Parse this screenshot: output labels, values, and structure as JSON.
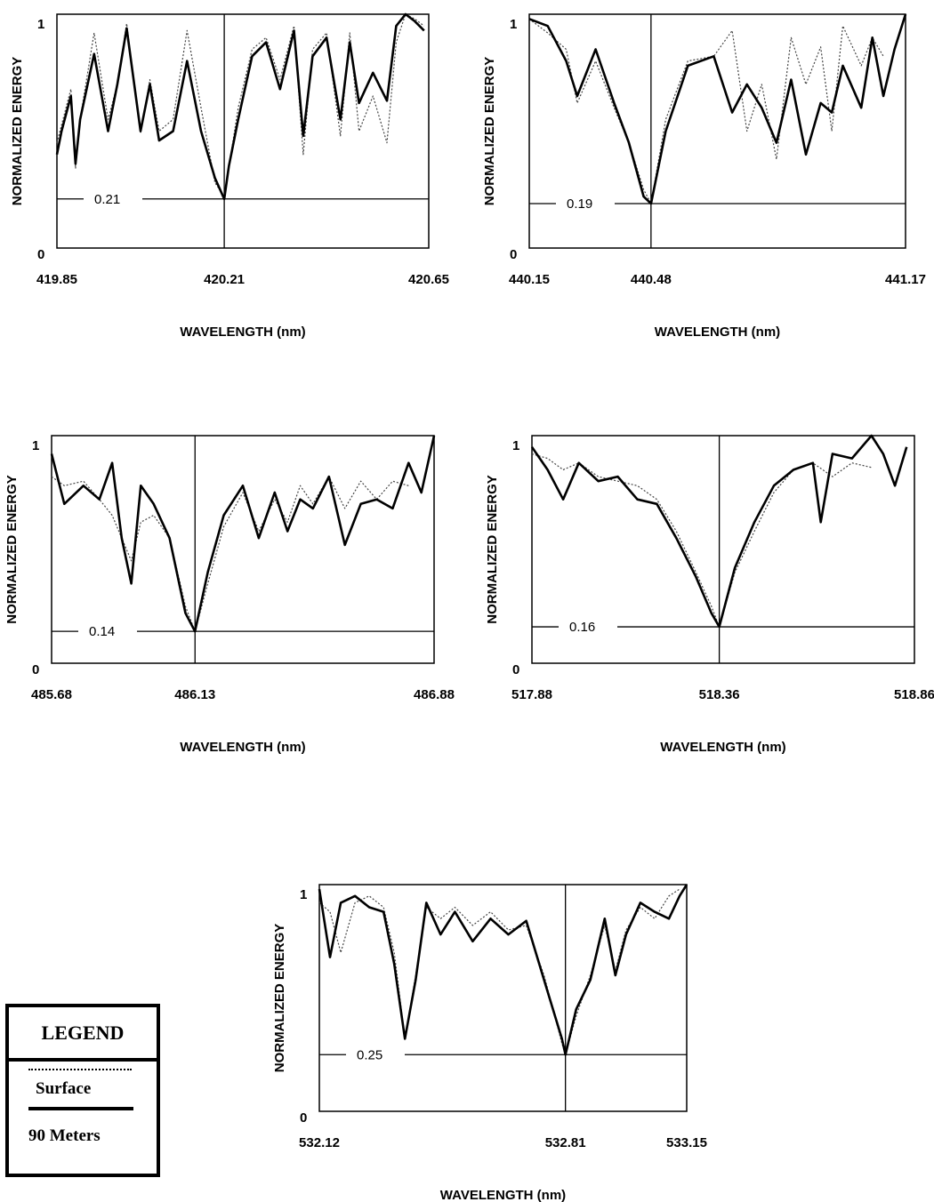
{
  "chart_data": [
    {
      "type": "line",
      "ylabel": "NORMALIZED ENERGY",
      "xlabel": "WAVELENGTH (nm)",
      "xlim": [
        419.85,
        420.65
      ],
      "ylim": [
        0,
        1
      ],
      "xticks": [
        "419.85",
        "420.21",
        "420.65"
      ],
      "yticks": [
        "0",
        "1"
      ],
      "line_center": 420.21,
      "min_value": 0.21,
      "min_label": "0.21",
      "series": [
        {
          "name": "Surface",
          "style": "dotted",
          "x": [
            419.85,
            419.88,
            419.89,
            419.9,
            419.93,
            419.96,
            419.98,
            420.0,
            420.03,
            420.05,
            420.07,
            420.1,
            420.13,
            420.16,
            420.19,
            420.21,
            420.24,
            420.27,
            420.3,
            420.33,
            420.36,
            420.38,
            420.4,
            420.43,
            420.46,
            420.48,
            420.5,
            420.53,
            420.56,
            420.58,
            420.6,
            420.62,
            420.64
          ],
          "y": [
            0.45,
            0.68,
            0.34,
            0.55,
            0.92,
            0.55,
            0.7,
            0.96,
            0.49,
            0.72,
            0.5,
            0.55,
            0.93,
            0.6,
            0.28,
            0.22,
            0.6,
            0.85,
            0.9,
            0.72,
            0.95,
            0.4,
            0.85,
            0.92,
            0.48,
            0.92,
            0.5,
            0.65,
            0.45,
            0.88,
            1.0,
            0.98,
            0.95
          ]
        },
        {
          "name": "90 Meters",
          "style": "solid",
          "x": [
            419.85,
            419.86,
            419.88,
            419.89,
            419.9,
            419.93,
            419.96,
            419.98,
            420.0,
            420.03,
            420.05,
            420.07,
            420.1,
            420.13,
            420.16,
            420.19,
            420.21,
            420.22,
            420.24,
            420.27,
            420.3,
            420.33,
            420.36,
            420.38,
            420.4,
            420.43,
            420.46,
            420.48,
            420.5,
            420.53,
            420.56,
            420.58,
            420.6,
            420.62,
            420.64
          ],
          "y": [
            0.4,
            0.5,
            0.65,
            0.36,
            0.55,
            0.83,
            0.5,
            0.7,
            0.94,
            0.5,
            0.7,
            0.46,
            0.5,
            0.8,
            0.5,
            0.3,
            0.21,
            0.35,
            0.55,
            0.82,
            0.88,
            0.68,
            0.93,
            0.48,
            0.82,
            0.9,
            0.55,
            0.88,
            0.62,
            0.75,
            0.63,
            0.95,
            1.0,
            0.97,
            0.93
          ]
        }
      ]
    },
    {
      "type": "line",
      "ylabel": "NORMALIZED ENERGY",
      "xlabel": "WAVELENGTH (nm)",
      "xlim": [
        440.15,
        441.17
      ],
      "ylim": [
        0,
        1
      ],
      "xticks": [
        "440.15",
        "440.48",
        "441.17"
      ],
      "yticks": [
        "0",
        "1"
      ],
      "line_center": 440.48,
      "min_value": 0.19,
      "min_label": "0.19",
      "series": [
        {
          "name": "Surface",
          "style": "dotted",
          "x": [
            440.15,
            440.2,
            440.25,
            440.28,
            440.33,
            440.38,
            440.42,
            440.46,
            440.48,
            440.52,
            440.58,
            440.65,
            440.7,
            440.74,
            440.78,
            440.82,
            440.86,
            440.9,
            440.94,
            440.97,
            441.0,
            441.05,
            441.08,
            441.11
          ],
          "y": [
            0.98,
            0.92,
            0.85,
            0.62,
            0.8,
            0.6,
            0.45,
            0.25,
            0.19,
            0.55,
            0.8,
            0.82,
            0.93,
            0.5,
            0.7,
            0.38,
            0.9,
            0.7,
            0.86,
            0.5,
            0.95,
            0.78,
            0.9,
            0.82
          ]
        },
        {
          "name": "90 Meters",
          "style": "solid",
          "x": [
            440.15,
            440.2,
            440.25,
            440.28,
            440.33,
            440.38,
            440.42,
            440.46,
            440.48,
            440.52,
            440.58,
            440.65,
            440.7,
            440.74,
            440.78,
            440.82,
            440.86,
            440.9,
            440.94,
            440.97,
            441.0,
            441.05,
            441.08,
            441.11,
            441.14,
            441.17
          ],
          "y": [
            0.98,
            0.95,
            0.8,
            0.65,
            0.85,
            0.62,
            0.45,
            0.22,
            0.19,
            0.5,
            0.78,
            0.82,
            0.58,
            0.7,
            0.6,
            0.45,
            0.72,
            0.4,
            0.62,
            0.58,
            0.78,
            0.6,
            0.9,
            0.65,
            0.85,
            1.0
          ]
        }
      ]
    },
    {
      "type": "line",
      "ylabel": "NORMALIZED ENERGY",
      "xlabel": "WAVELENGTH (nm)",
      "xlim": [
        485.68,
        486.88
      ],
      "ylim": [
        0,
        1
      ],
      "xticks": [
        "485.68",
        "486.13",
        "486.88"
      ],
      "yticks": [
        "0",
        "1"
      ],
      "line_center": 486.13,
      "min_value": 0.14,
      "min_label": "0.14",
      "series": [
        {
          "name": "Surface",
          "style": "dotted",
          "x": [
            485.68,
            485.72,
            485.78,
            485.83,
            485.87,
            485.9,
            485.93,
            485.96,
            486.0,
            486.05,
            486.1,
            486.13,
            486.17,
            486.22,
            486.28,
            486.33,
            486.38,
            486.42,
            486.46,
            486.5,
            486.55,
            486.6,
            486.65,
            486.7,
            486.75,
            486.8
          ],
          "y": [
            0.82,
            0.78,
            0.8,
            0.72,
            0.65,
            0.55,
            0.45,
            0.62,
            0.65,
            0.55,
            0.25,
            0.14,
            0.35,
            0.6,
            0.75,
            0.58,
            0.72,
            0.62,
            0.78,
            0.7,
            0.82,
            0.68,
            0.8,
            0.72,
            0.8,
            0.78
          ]
        },
        {
          "name": "90 Meters",
          "style": "solid",
          "x": [
            485.68,
            485.72,
            485.78,
            485.83,
            485.87,
            485.9,
            485.93,
            485.96,
            486.0,
            486.05,
            486.1,
            486.13,
            486.17,
            486.22,
            486.28,
            486.33,
            486.38,
            486.42,
            486.46,
            486.5,
            486.55,
            486.6,
            486.65,
            486.7,
            486.75,
            486.8,
            486.84,
            486.88
          ],
          "y": [
            0.92,
            0.7,
            0.78,
            0.72,
            0.88,
            0.55,
            0.35,
            0.78,
            0.7,
            0.55,
            0.22,
            0.14,
            0.4,
            0.65,
            0.78,
            0.55,
            0.75,
            0.58,
            0.72,
            0.68,
            0.82,
            0.52,
            0.7,
            0.72,
            0.68,
            0.88,
            0.75,
            1.0
          ]
        }
      ]
    },
    {
      "type": "line",
      "ylabel": "NORMALIZED ENERGY",
      "xlabel": "WAVELENGTH (nm)",
      "xlim": [
        517.88,
        518.86
      ],
      "ylim": [
        0,
        1
      ],
      "xticks": [
        "517.88",
        "518.36",
        "518.86"
      ],
      "yticks": [
        "0",
        "1"
      ],
      "line_center": 518.36,
      "min_value": 0.16,
      "min_label": "0.16",
      "series": [
        {
          "name": "Surface",
          "style": "dotted",
          "x": [
            517.88,
            517.92,
            517.96,
            518.0,
            518.05,
            518.1,
            518.15,
            518.2,
            518.25,
            518.3,
            518.34,
            518.36,
            518.4,
            518.45,
            518.5,
            518.55,
            518.6,
            518.65,
            518.7,
            518.75
          ],
          "y": [
            0.92,
            0.9,
            0.85,
            0.88,
            0.82,
            0.8,
            0.78,
            0.72,
            0.58,
            0.4,
            0.25,
            0.16,
            0.4,
            0.58,
            0.75,
            0.85,
            0.88,
            0.82,
            0.88,
            0.86
          ]
        },
        {
          "name": "90 Meters",
          "style": "solid",
          "x": [
            517.88,
            517.92,
            517.96,
            518.0,
            518.05,
            518.1,
            518.15,
            518.2,
            518.25,
            518.3,
            518.34,
            518.36,
            518.4,
            518.45,
            518.5,
            518.55,
            518.6,
            518.62,
            518.65,
            518.7,
            518.75,
            518.78,
            518.81,
            518.84
          ],
          "y": [
            0.95,
            0.85,
            0.72,
            0.88,
            0.8,
            0.82,
            0.72,
            0.7,
            0.55,
            0.38,
            0.22,
            0.16,
            0.42,
            0.62,
            0.78,
            0.85,
            0.88,
            0.62,
            0.92,
            0.9,
            1.0,
            0.92,
            0.78,
            0.95
          ]
        }
      ]
    },
    {
      "type": "line",
      "ylabel": "NORMALIZED ENERGY",
      "xlabel": "WAVELENGTH (nm)",
      "xlim": [
        532.12,
        533.15
      ],
      "ylim": [
        0,
        1
      ],
      "xticks": [
        "532.12",
        "532.81",
        "533.15"
      ],
      "yticks": [
        "0",
        "1"
      ],
      "line_center": 532.81,
      "min_value": 0.25,
      "min_label": "0.25",
      "series": [
        {
          "name": "Surface",
          "style": "dotted",
          "x": [
            532.12,
            532.15,
            532.18,
            532.22,
            532.26,
            532.3,
            532.33,
            532.36,
            532.39,
            532.42,
            532.46,
            532.5,
            532.55,
            532.6,
            532.65,
            532.7,
            532.75,
            532.8,
            532.81,
            532.84,
            532.88,
            532.92,
            532.95,
            532.98,
            533.02,
            533.06,
            533.1,
            533.13
          ],
          "y": [
            0.92,
            0.88,
            0.7,
            0.92,
            0.95,
            0.9,
            0.7,
            0.32,
            0.6,
            0.9,
            0.85,
            0.9,
            0.82,
            0.88,
            0.8,
            0.82,
            0.6,
            0.3,
            0.25,
            0.42,
            0.6,
            0.82,
            0.62,
            0.8,
            0.9,
            0.85,
            0.95,
            0.98
          ]
        },
        {
          "name": "90 Meters",
          "style": "solid",
          "x": [
            532.12,
            532.15,
            532.18,
            532.22,
            532.26,
            532.3,
            532.33,
            532.36,
            532.39,
            532.42,
            532.46,
            532.5,
            532.55,
            532.6,
            532.65,
            532.7,
            532.75,
            532.8,
            532.81,
            532.84,
            532.88,
            532.92,
            532.95,
            532.98,
            533.02,
            533.06,
            533.1,
            533.13,
            533.15
          ],
          "y": [
            0.98,
            0.68,
            0.92,
            0.95,
            0.9,
            0.88,
            0.65,
            0.32,
            0.58,
            0.92,
            0.78,
            0.88,
            0.75,
            0.85,
            0.78,
            0.84,
            0.58,
            0.32,
            0.25,
            0.45,
            0.58,
            0.85,
            0.6,
            0.78,
            0.92,
            0.88,
            0.85,
            0.95,
            1.0
          ]
        }
      ]
    }
  ],
  "legend": {
    "title": "LEGEND",
    "items": [
      "Surface",
      "90 Meters"
    ]
  }
}
